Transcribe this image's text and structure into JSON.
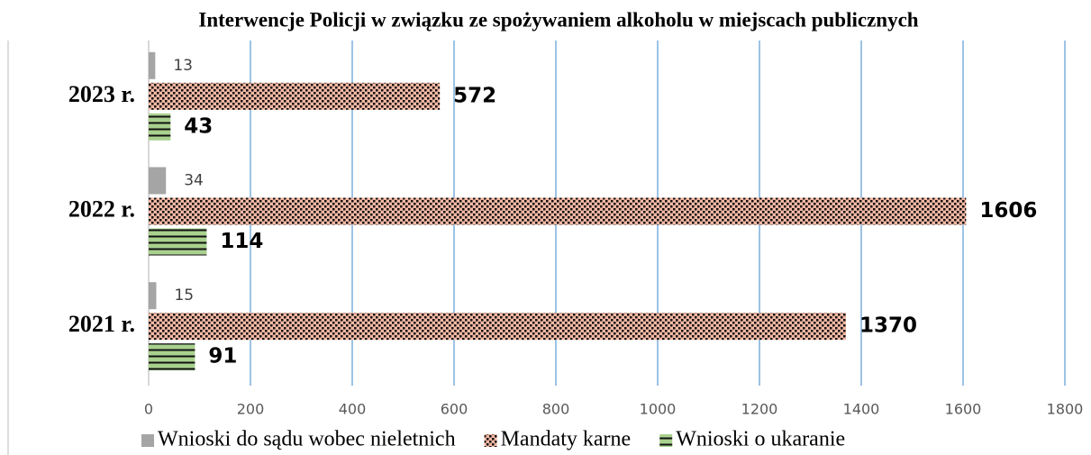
{
  "chart_data": {
    "type": "barh",
    "title": "Interwencje Policji w związku ze spożywaniem alkoholu w miejscach publicznych",
    "categories": [
      "2021 r.",
      "2022 r.",
      "2023 r."
    ],
    "series": [
      {
        "name": "Wnioski do sądu wobec nieletnich",
        "color": "#a5a5a5",
        "values": [
          15,
          34,
          13
        ]
      },
      {
        "name": "Mandaty karne",
        "color": "#f4b8a4",
        "pattern": "dots",
        "values": [
          1370,
          1606,
          572
        ]
      },
      {
        "name": "Wnioski o ukaranie",
        "color": "#a9d18e",
        "pattern": "stripes",
        "values": [
          91,
          114,
          43
        ]
      }
    ],
    "xlim": [
      0,
      1800
    ],
    "xticks": [
      0,
      200,
      400,
      600,
      800,
      1000,
      1200,
      1400,
      1600,
      1800
    ],
    "grid": true,
    "legend": "bottom"
  }
}
